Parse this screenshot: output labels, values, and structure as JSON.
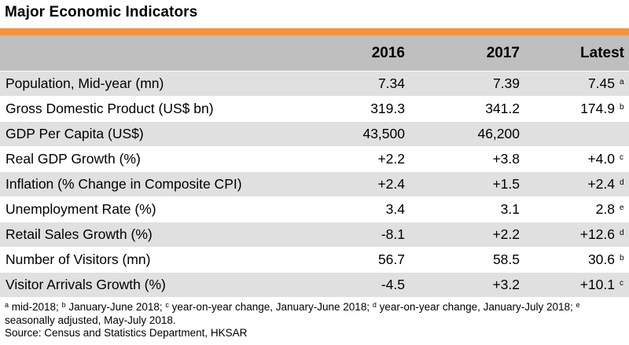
{
  "title": "Major Economic Indicators",
  "colors": {
    "accent": "#f7923a",
    "header_bg": "#bfbfbf",
    "row_shade": "#e0e0e0"
  },
  "table": {
    "headers": [
      "",
      "2016",
      "2017",
      "Latest"
    ],
    "rows": [
      {
        "label": "Population, Mid-year (mn)",
        "y2016": "7.34",
        "y2017": "7.39",
        "latest": "7.45",
        "note": "a"
      },
      {
        "label": "Gross Domestic Product (US$ bn)",
        "y2016": "319.3",
        "y2017": "341.2",
        "latest": "174.9",
        "note": "b"
      },
      {
        "label": "GDP Per Capita (US$)",
        "y2016": "43,500",
        "y2017": "46,200",
        "latest": "",
        "note": ""
      },
      {
        "label": "Real GDP Growth (%)",
        "y2016": "+2.2",
        "y2017": "+3.8",
        "latest": "+4.0",
        "note": "c"
      },
      {
        "label": "Inflation (% Change in Composite CPI)",
        "y2016": "+2.4",
        "y2017": "+1.5",
        "latest": "+2.4",
        "note": "d"
      },
      {
        "label": "Unemployment Rate (%)",
        "y2016": "3.4",
        "y2017": "3.1",
        "latest": "2.8",
        "note": "e"
      },
      {
        "label": "Retail Sales Growth (%)",
        "y2016": "-8.1",
        "y2017": "+2.2",
        "latest": "+12.6",
        "note": "d"
      },
      {
        "label": "Number of Visitors (mn)",
        "y2016": "56.7",
        "y2017": "58.5",
        "latest": "30.6",
        "note": "b"
      },
      {
        "label": "Visitor Arrivals Growth (%)",
        "y2016": "-4.5",
        "y2017": "+3.2",
        "latest": "+10.1",
        "note": "c"
      }
    ]
  },
  "footnotes": {
    "a_mark": "a",
    "a_text": " mid-2018; ",
    "b_mark": "b",
    "b_text": " January-June 2018; ",
    "c_mark": "c",
    "c_text": " year-on-year change, January-June 2018; ",
    "d_mark": "d",
    "d_text": " year-on-year change, January-July 2018; ",
    "e_mark": "e",
    "e_text": " seasonally adjusted, May-July 2018."
  },
  "source": "Source: Census and Statistics Department, HKSAR"
}
